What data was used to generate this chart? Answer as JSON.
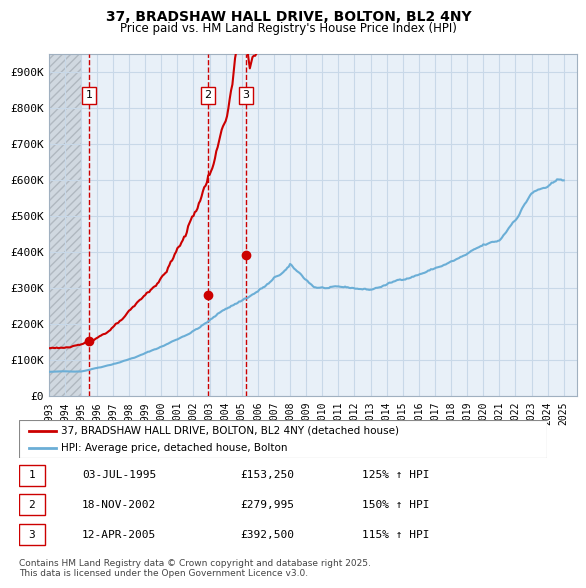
{
  "title1": "37, BRADSHAW HALL DRIVE, BOLTON, BL2 4NY",
  "title2": "Price paid vs. HM Land Registry's House Price Index (HPI)",
  "xlabel": "",
  "ylabel": "",
  "ylim": [
    0,
    950000
  ],
  "yticks": [
    0,
    100000,
    200000,
    300000,
    400000,
    500000,
    600000,
    700000,
    800000,
    900000
  ],
  "ytick_labels": [
    "£0",
    "£100K",
    "£200K",
    "£300K",
    "£400K",
    "£500K",
    "£600K",
    "£700K",
    "£800K",
    "£900K"
  ],
  "hpi_color": "#6baed6",
  "price_color": "#cc0000",
  "sale_marker_color": "#cc0000",
  "dashed_line_color": "#cc0000",
  "grid_color": "#c8d8e8",
  "background_color": "#dce8f0",
  "plot_bg_color": "#e8f0f8",
  "hatch_color": "#c0c8d0",
  "legend_entries": [
    "37, BRADSHAW HALL DRIVE, BOLTON, BL2 4NY (detached house)",
    "HPI: Average price, detached house, Bolton"
  ],
  "sale_points": [
    {
      "date_x": 1995.5,
      "price": 153250,
      "label": "1"
    },
    {
      "date_x": 2002.88,
      "price": 279995,
      "label": "2"
    },
    {
      "date_x": 2005.27,
      "price": 392500,
      "label": "3"
    }
  ],
  "table_rows": [
    {
      "num": "1",
      "date": "03-JUL-1995",
      "price": "£153,250",
      "hpi": "125% ↑ HPI"
    },
    {
      "num": "2",
      "date": "18-NOV-2002",
      "price": "£279,995",
      "hpi": "150% ↑ HPI"
    },
    {
      "num": "3",
      "date": "12-APR-2005",
      "price": "£392,500",
      "hpi": "115% ↑ HPI"
    }
  ],
  "footer": "Contains HM Land Registry data © Crown copyright and database right 2025.\nThis data is licensed under the Open Government Licence v3.0.",
  "xlim_start": 1993.0,
  "xlim_end": 2025.8
}
